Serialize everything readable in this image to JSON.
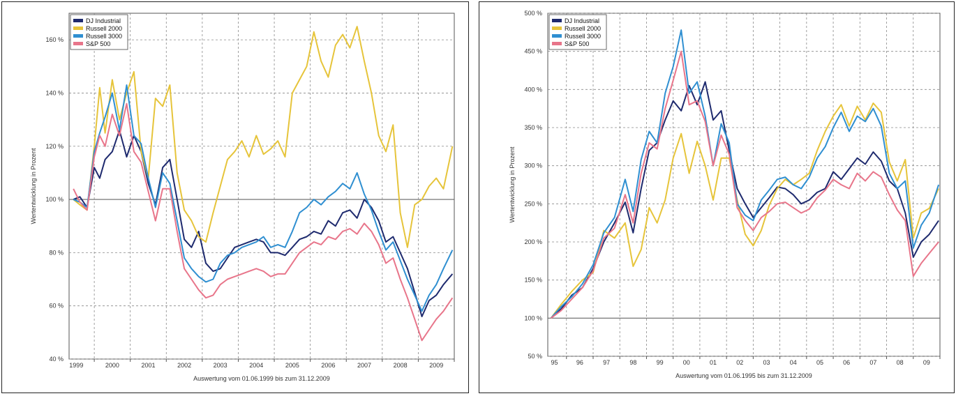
{
  "chart_data": [
    {
      "type": "line",
      "xlabel": "Auswertung vom 01.06.1999 bis zum 31.12.2009",
      "ylabel": "Wertentwicklung in Prozent",
      "ylim": [
        40,
        170
      ],
      "yticks": [
        "40 %",
        "60 %",
        "80 %",
        "100 %",
        "120 %",
        "140 %",
        "160 %"
      ],
      "ytick_values": [
        40,
        60,
        80,
        100,
        120,
        140,
        160
      ],
      "xlim": [
        1999.3,
        2010.0
      ],
      "xtick_labels": [
        "1999",
        "2000",
        "2001",
        "2002",
        "2003",
        "2004",
        "2005",
        "2006",
        "2007",
        "2008",
        "2009"
      ],
      "xtick_positions": [
        1999.5,
        2000.5,
        2001.5,
        2002.5,
        2003.5,
        2004.5,
        2005.5,
        2006.5,
        2007.5,
        2008.5,
        2009.5
      ],
      "grid": true,
      "baseline": 100,
      "legend_position": "top-left",
      "series": [
        {
          "name": "DJ Industrial",
          "color": "#1e2a6e",
          "x": [
            1999.42,
            1999.6,
            1999.8,
            2000.0,
            2000.15,
            2000.3,
            2000.5,
            2000.7,
            2000.9,
            2001.1,
            2001.3,
            2001.5,
            2001.7,
            2001.9,
            2002.1,
            2002.3,
            2002.5,
            2002.7,
            2002.9,
            2003.1,
            2003.3,
            2003.5,
            2003.7,
            2003.9,
            2004.1,
            2004.3,
            2004.5,
            2004.7,
            2004.9,
            2005.1,
            2005.3,
            2005.5,
            2005.7,
            2005.9,
            2006.1,
            2006.3,
            2006.5,
            2006.7,
            2006.9,
            2007.1,
            2007.3,
            2007.5,
            2007.7,
            2007.9,
            2008.1,
            2008.3,
            2008.5,
            2008.7,
            2008.9,
            2009.1,
            2009.3,
            2009.5,
            2009.7,
            2009.95
          ],
          "values": [
            100,
            101,
            97,
            112,
            108,
            115,
            118,
            126,
            116,
            124,
            118,
            106,
            98,
            112,
            115,
            100,
            85,
            82,
            88,
            76,
            73,
            74,
            78,
            82,
            83,
            84,
            85,
            84,
            80,
            80,
            79,
            82,
            85,
            86,
            88,
            87,
            92,
            90,
            95,
            96,
            93,
            100,
            97,
            92,
            84,
            86,
            80,
            74,
            65,
            56,
            62,
            64,
            68,
            72
          ]
        },
        {
          "name": "Russell 2000",
          "color": "#e6c43a",
          "x": [
            1999.42,
            1999.6,
            1999.8,
            2000.0,
            2000.15,
            2000.3,
            2000.5,
            2000.7,
            2000.9,
            2001.1,
            2001.3,
            2001.5,
            2001.7,
            2001.9,
            2002.1,
            2002.3,
            2002.5,
            2002.7,
            2002.9,
            2003.1,
            2003.3,
            2003.5,
            2003.7,
            2003.9,
            2004.1,
            2004.3,
            2004.5,
            2004.7,
            2004.9,
            2005.1,
            2005.3,
            2005.5,
            2005.7,
            2005.9,
            2006.1,
            2006.3,
            2006.5,
            2006.7,
            2006.9,
            2007.1,
            2007.3,
            2007.5,
            2007.7,
            2007.9,
            2008.1,
            2008.3,
            2008.5,
            2008.7,
            2008.9,
            2009.1,
            2009.3,
            2009.5,
            2009.7,
            2009.95
          ],
          "values": [
            100,
            98,
            96,
            120,
            142,
            125,
            145,
            130,
            140,
            148,
            118,
            108,
            138,
            135,
            143,
            110,
            96,
            92,
            86,
            84,
            95,
            105,
            115,
            118,
            122,
            116,
            124,
            117,
            119,
            122,
            116,
            140,
            145,
            150,
            163,
            152,
            146,
            158,
            162,
            157,
            165,
            152,
            140,
            124,
            118,
            128,
            95,
            82,
            98,
            100,
            105,
            108,
            104,
            120
          ]
        },
        {
          "name": "Russell 3000",
          "color": "#2f8fd1",
          "x": [
            1999.42,
            1999.6,
            1999.8,
            2000.0,
            2000.15,
            2000.3,
            2000.5,
            2000.7,
            2000.9,
            2001.1,
            2001.3,
            2001.5,
            2001.7,
            2001.9,
            2002.1,
            2002.3,
            2002.5,
            2002.7,
            2002.9,
            2003.1,
            2003.3,
            2003.5,
            2003.7,
            2003.9,
            2004.1,
            2004.3,
            2004.5,
            2004.7,
            2004.9,
            2005.1,
            2005.3,
            2005.5,
            2005.7,
            2005.9,
            2006.1,
            2006.3,
            2006.5,
            2006.7,
            2006.9,
            2007.1,
            2007.3,
            2007.5,
            2007.7,
            2007.9,
            2008.1,
            2008.3,
            2008.5,
            2008.7,
            2008.9,
            2009.1,
            2009.3,
            2009.5,
            2009.7,
            2009.95
          ],
          "values": [
            100,
            99,
            97,
            118,
            125,
            131,
            140,
            126,
            143,
            124,
            121,
            108,
            97,
            110,
            106,
            92,
            78,
            74,
            71,
            69,
            70,
            76,
            79,
            80,
            82,
            83,
            84,
            86,
            82,
            83,
            82,
            88,
            95,
            97,
            100,
            98,
            101,
            103,
            106,
            104,
            110,
            102,
            96,
            88,
            81,
            84,
            77,
            70,
            64,
            58,
            64,
            68,
            74,
            81
          ]
        },
        {
          "name": "S&P 500",
          "color": "#e8758a",
          "x": [
            1999.42,
            1999.6,
            1999.8,
            2000.0,
            2000.15,
            2000.3,
            2000.5,
            2000.7,
            2000.9,
            2001.1,
            2001.3,
            2001.5,
            2001.7,
            2001.9,
            2002.1,
            2002.3,
            2002.5,
            2002.7,
            2002.9,
            2003.1,
            2003.3,
            2003.5,
            2003.7,
            2003.9,
            2004.1,
            2004.3,
            2004.5,
            2004.7,
            2004.9,
            2005.1,
            2005.3,
            2005.5,
            2005.7,
            2005.9,
            2006.1,
            2006.3,
            2006.5,
            2006.7,
            2006.9,
            2007.1,
            2007.3,
            2007.5,
            2007.7,
            2007.9,
            2008.1,
            2008.3,
            2008.5,
            2008.7,
            2008.9,
            2009.1,
            2009.3,
            2009.5,
            2009.7,
            2009.95
          ],
          "values": [
            104,
            99,
            96,
            116,
            124,
            120,
            132,
            124,
            136,
            118,
            114,
            103,
            92,
            104,
            104,
            88,
            74,
            70,
            66,
            63,
            64,
            68,
            70,
            71,
            72,
            73,
            74,
            73,
            71,
            72,
            72,
            76,
            80,
            82,
            84,
            83,
            86,
            85,
            88,
            89,
            87,
            91,
            88,
            83,
            76,
            78,
            70,
            63,
            55,
            47,
            51,
            55,
            58,
            63
          ]
        }
      ]
    },
    {
      "type": "line",
      "xlabel": "Auswertung vom 01.06.1995 bis zum 31.12.2009",
      "ylabel": "Wertentwicklung in Prozent",
      "ylim": [
        50,
        500
      ],
      "yticks": [
        "50 %",
        "100 %",
        "150 %",
        "200 %",
        "250 %",
        "300 %",
        "350 %",
        "400 %",
        "450 %",
        "500 %"
      ],
      "ytick_values": [
        50,
        100,
        150,
        200,
        250,
        300,
        350,
        400,
        450,
        500
      ],
      "xlim": [
        1995.3,
        2010.0
      ],
      "xtick_labels": [
        "95",
        "96",
        "97",
        "98",
        "99",
        "00",
        "01",
        "02",
        "03",
        "04",
        "05",
        "06",
        "07",
        "08",
        "09"
      ],
      "xtick_positions": [
        1995.55,
        1996.5,
        1997.5,
        1998.5,
        1999.5,
        2000.5,
        2001.5,
        2002.5,
        2003.5,
        2004.5,
        2005.5,
        2006.5,
        2007.5,
        2008.5,
        2009.5
      ],
      "grid": true,
      "baseline": 100,
      "legend_position": "top-left",
      "series": [
        {
          "name": "DJ Industrial",
          "color": "#1e2a6e",
          "x": [
            1995.42,
            1995.8,
            1996.2,
            1996.6,
            1997.0,
            1997.4,
            1997.8,
            1998.2,
            1998.5,
            1998.8,
            1999.1,
            1999.4,
            1999.7,
            2000.0,
            2000.3,
            2000.6,
            2000.9,
            2001.2,
            2001.5,
            2001.8,
            2002.1,
            2002.4,
            2002.7,
            2003.0,
            2003.3,
            2003.6,
            2003.9,
            2004.2,
            2004.5,
            2004.8,
            2005.1,
            2005.4,
            2005.7,
            2006.0,
            2006.3,
            2006.6,
            2006.9,
            2007.2,
            2007.5,
            2007.8,
            2008.1,
            2008.4,
            2008.7,
            2009.0,
            2009.3,
            2009.6,
            2009.95
          ],
          "values": [
            100,
            112,
            130,
            140,
            165,
            200,
            225,
            252,
            212,
            270,
            320,
            330,
            360,
            385,
            372,
            405,
            380,
            410,
            360,
            372,
            320,
            270,
            250,
            232,
            245,
            258,
            272,
            270,
            262,
            250,
            255,
            265,
            270,
            292,
            282,
            296,
            310,
            302,
            318,
            306,
            280,
            270,
            238,
            180,
            200,
            210,
            228
          ]
        },
        {
          "name": "Russell 2000",
          "color": "#e6c43a",
          "x": [
            1995.42,
            1995.8,
            1996.2,
            1996.6,
            1997.0,
            1997.4,
            1997.8,
            1998.2,
            1998.5,
            1998.8,
            1999.1,
            1999.4,
            1999.7,
            2000.0,
            2000.3,
            2000.6,
            2000.9,
            2001.2,
            2001.5,
            2001.8,
            2002.1,
            2002.4,
            2002.7,
            2003.0,
            2003.3,
            2003.6,
            2003.9,
            2004.2,
            2004.5,
            2004.8,
            2005.1,
            2005.4,
            2005.7,
            2006.0,
            2006.3,
            2006.6,
            2006.9,
            2007.2,
            2007.5,
            2007.8,
            2008.1,
            2008.4,
            2008.7,
            2009.0,
            2009.3,
            2009.6,
            2009.95
          ],
          "values": [
            100,
            118,
            135,
            150,
            160,
            215,
            205,
            225,
            168,
            190,
            245,
            225,
            255,
            310,
            342,
            290,
            332,
            300,
            255,
            310,
            310,
            255,
            210,
            195,
            215,
            248,
            270,
            282,
            275,
            282,
            290,
            320,
            345,
            365,
            380,
            352,
            378,
            360,
            382,
            370,
            305,
            280,
            308,
            205,
            238,
            244,
            270
          ]
        },
        {
          "name": "Russell 3000",
          "color": "#2f8fd1",
          "x": [
            1995.42,
            1995.8,
            1996.2,
            1996.6,
            1997.0,
            1997.4,
            1997.8,
            1998.2,
            1998.5,
            1998.8,
            1999.1,
            1999.4,
            1999.7,
            2000.0,
            2000.3,
            2000.6,
            2000.9,
            2001.2,
            2001.5,
            2001.8,
            2002.1,
            2002.4,
            2002.7,
            2003.0,
            2003.3,
            2003.6,
            2003.9,
            2004.2,
            2004.5,
            2004.8,
            2005.1,
            2005.4,
            2005.7,
            2006.0,
            2006.3,
            2006.6,
            2006.9,
            2007.2,
            2007.5,
            2007.8,
            2008.1,
            2008.4,
            2008.7,
            2009.0,
            2009.3,
            2009.6,
            2009.95
          ],
          "values": [
            100,
            115,
            128,
            145,
            170,
            212,
            232,
            282,
            240,
            308,
            345,
            330,
            395,
            430,
            478,
            395,
            410,
            365,
            300,
            355,
            330,
            250,
            235,
            228,
            255,
            268,
            282,
            285,
            275,
            270,
            285,
            310,
            325,
            350,
            370,
            345,
            365,
            358,
            375,
            352,
            290,
            270,
            280,
            192,
            222,
            238,
            275
          ]
        },
        {
          "name": "S&P 500",
          "color": "#e8758a",
          "x": [
            1995.42,
            1995.8,
            1996.2,
            1996.6,
            1997.0,
            1997.4,
            1997.8,
            1998.2,
            1998.5,
            1998.8,
            1999.1,
            1999.4,
            1999.7,
            2000.0,
            2000.3,
            2000.6,
            2000.9,
            2001.2,
            2001.5,
            2001.8,
            2002.1,
            2002.4,
            2002.7,
            2003.0,
            2003.3,
            2003.6,
            2003.9,
            2004.2,
            2004.5,
            2004.8,
            2005.1,
            2005.4,
            2005.7,
            2006.0,
            2006.3,
            2006.6,
            2006.9,
            2007.2,
            2007.5,
            2007.8,
            2008.1,
            2008.4,
            2008.7,
            2009.0,
            2009.3,
            2009.6,
            2009.95
          ],
          "values": [
            100,
            110,
            125,
            140,
            162,
            205,
            218,
            262,
            225,
            290,
            330,
            322,
            375,
            412,
            450,
            380,
            385,
            358,
            300,
            340,
            315,
            245,
            228,
            215,
            232,
            240,
            250,
            252,
            245,
            238,
            243,
            258,
            268,
            282,
            275,
            270,
            290,
            280,
            292,
            285,
            262,
            242,
            228,
            155,
            172,
            185,
            200
          ]
        }
      ]
    }
  ]
}
